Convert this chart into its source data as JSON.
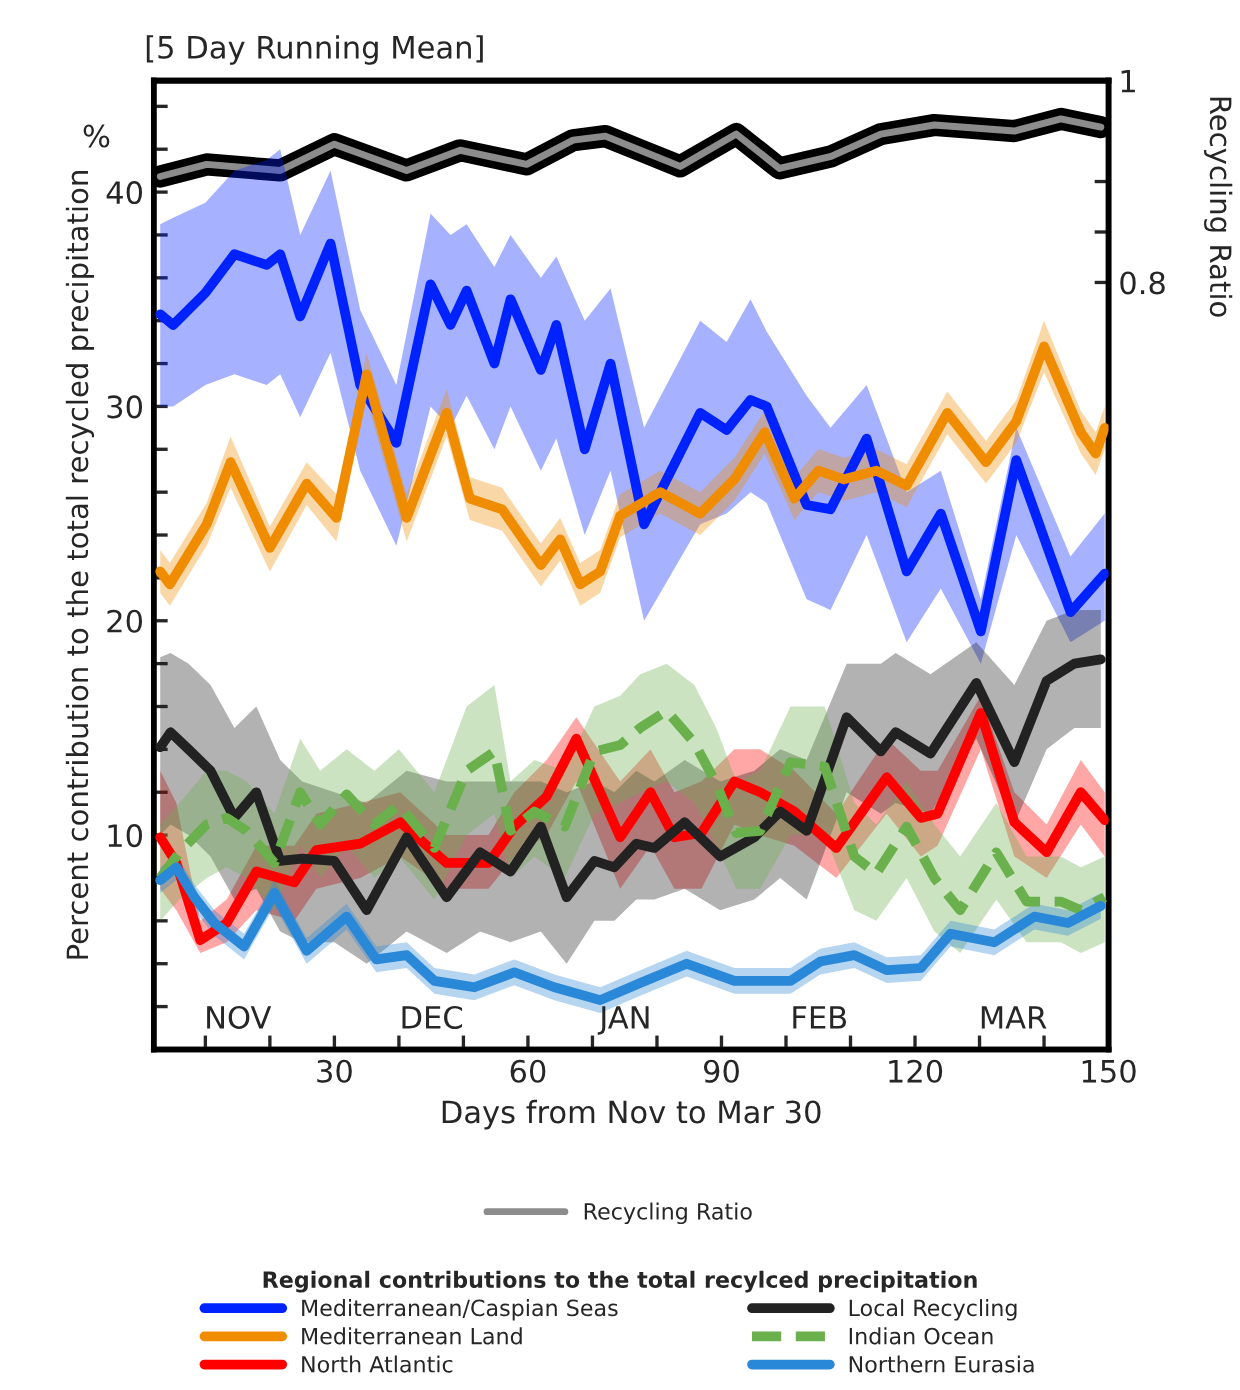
{
  "chart_data": {
    "type": "line",
    "title": "[5 Day Running Mean]",
    "xlabel": "Days from Nov to Mar 30",
    "ylabel": "Percent contribution to the total recycled precipitation",
    "y2label": "Recycling Ratio",
    "legend_title": "Regional contributions to the total recylced precipitation",
    "legend": "bottom",
    "grid": false,
    "xlim": [
      2,
      150
    ],
    "xticks": [
      {
        "value": 10,
        "label": null
      },
      {
        "value": 20,
        "label": null
      },
      30,
      {
        "value": 40,
        "label": null
      },
      {
        "value": 50,
        "label": null
      },
      60,
      {
        "value": 70,
        "label": null
      },
      {
        "value": 80,
        "label": null
      },
      90,
      {
        "value": 100,
        "label": null
      },
      {
        "value": 110,
        "label": null
      },
      120,
      {
        "value": 130,
        "label": null
      },
      {
        "value": 140,
        "label": null
      },
      150
    ],
    "ylim": [
      0,
      45.2
    ],
    "yticks": [
      {
        "value": 2,
        "label": null
      },
      {
        "value": 4,
        "label": null
      },
      {
        "value": 6,
        "label": null
      },
      {
        "value": 8,
        "label": null
      },
      10,
      {
        "value": 12,
        "label": null
      },
      {
        "value": 14,
        "label": null
      },
      {
        "value": 16,
        "label": null
      },
      {
        "value": 18,
        "label": null
      },
      20,
      {
        "value": 22,
        "label": null
      },
      {
        "value": 24,
        "label": null
      },
      {
        "value": 26,
        "label": null
      },
      {
        "value": 28,
        "label": null
      },
      30,
      {
        "value": 32,
        "label": null
      },
      {
        "value": 34,
        "label": null
      },
      {
        "value": 36,
        "label": null
      },
      {
        "value": 38,
        "label": null
      },
      40,
      {
        "value": 42,
        "label": null
      },
      {
        "value": 44,
        "label": null
      }
    ],
    "y2lim": [
      0.04,
      1
    ],
    "y2ticks": [
      0.8,
      {
        "value": 0.85,
        "label": null
      },
      {
        "value": 0.9,
        "label": null
      },
      {
        "value": 0.95,
        "label": null
      },
      1
    ],
    "annotations": [
      "%",
      "NOV",
      "DEC",
      "JAN",
      "FEB",
      "MAR"
    ],
    "series": [
      {
        "name": "Recycling Ratio",
        "axis": "y2",
        "color": "#8c8c8c",
        "x": [
          3,
          10.2,
          21.6,
          30,
          41.2,
          49.5,
          59.8,
          67,
          72,
          77.4,
          83.6,
          92.3,
          99,
          107,
          114.7,
          123,
          135.4,
          142.6,
          148.8
        ],
        "values": [
          0.905,
          0.917,
          0.911,
          0.937,
          0.911,
          0.931,
          0.917,
          0.941,
          0.945,
          0.931,
          0.915,
          0.947,
          0.913,
          0.925,
          0.947,
          0.956,
          0.95,
          0.962,
          0.954
        ]
      },
      {
        "name": "Mediterranean/Caspian Seas",
        "color": "#0022ff",
        "x": [
          3,
          5,
          10,
          14.5,
          19.5,
          21.6,
          24.7,
          29.4,
          34,
          39.6,
          44.9,
          48,
          50.5,
          54.8,
          57.3,
          62,
          64.4,
          68.8,
          72.8,
          78,
          86.7,
          90.8,
          94.5,
          97,
          103.2,
          106.9,
          112.5,
          118.7,
          124,
          130.2,
          135.7,
          144.1,
          149.4
        ],
        "values": [
          34.3,
          33.8,
          35.3,
          37.1,
          36.6,
          37.1,
          34.2,
          37.6,
          31,
          28.3,
          35.7,
          33.8,
          35.4,
          32,
          35,
          31.7,
          33.8,
          28,
          32,
          24.5,
          29.7,
          28.9,
          30.3,
          30,
          25.4,
          25.2,
          28.5,
          22.3,
          25,
          19.5,
          27.5,
          20.4,
          22.2
        ],
        "lower": [
          30,
          30,
          31,
          31.5,
          31,
          31.5,
          29.5,
          32.5,
          27,
          23.5,
          30,
          29,
          30.5,
          28,
          30,
          27,
          28.5,
          24,
          27,
          20,
          24.5,
          25,
          26,
          25.5,
          21,
          20.5,
          24,
          19,
          21.5,
          18,
          24,
          19,
          20
        ],
        "upper": [
          38.5,
          38.8,
          39.5,
          41,
          41.5,
          42,
          38,
          41,
          34.5,
          31,
          39,
          38,
          38.5,
          36.5,
          38,
          36,
          37,
          34,
          35.5,
          29,
          34,
          33,
          35,
          33.5,
          30.5,
          29,
          31,
          26,
          27,
          21,
          29,
          23,
          25
        ]
      },
      {
        "name": "Mediterranean Land",
        "color": "#f08c00",
        "x": [
          3,
          4.5,
          10.2,
          13.9,
          20,
          25.7,
          30.3,
          35,
          41.2,
          47.4,
          51,
          56,
          62,
          65,
          68.1,
          71.2,
          74.3,
          80.5,
          86.7,
          92,
          96.7,
          101.3,
          105,
          109,
          114,
          118.7,
          125,
          131,
          135.7,
          140,
          145.7,
          148,
          149.4
        ],
        "values": [
          22.3,
          21.7,
          24.5,
          27.4,
          23.4,
          26.4,
          24.8,
          31.5,
          24.8,
          29.7,
          25.7,
          25.2,
          22.6,
          23.8,
          21.7,
          22.3,
          24.9,
          26,
          25,
          26.6,
          28.8,
          25.7,
          27,
          26.6,
          27,
          26.3,
          29.7,
          27.4,
          29.3,
          32.8,
          28.8,
          27.8,
          29
        ],
        "lower": [
          21.3,
          20.7,
          23.5,
          26.2,
          22.3,
          25.4,
          23.7,
          30.3,
          23.7,
          28.6,
          24.7,
          24.2,
          21.6,
          22.8,
          20.7,
          21.3,
          23.9,
          25,
          24,
          25.6,
          27.8,
          24.7,
          26,
          25.6,
          26,
          25.3,
          28.7,
          26.4,
          28.3,
          31.6,
          27.8,
          26.8,
          28
        ],
        "upper": [
          23.3,
          22.7,
          25.5,
          28.6,
          24.4,
          27.4,
          25.9,
          32.5,
          25.9,
          30.8,
          26.7,
          26.2,
          23.6,
          24.8,
          22.7,
          23.3,
          25.9,
          27,
          26,
          27.6,
          29.8,
          26.7,
          28,
          27.6,
          28,
          27.3,
          30.7,
          28.4,
          30.3,
          34,
          29.8,
          28.8,
          30
        ]
      },
      {
        "name": "North Atlantic",
        "color": "#ff0000",
        "x": [
          3,
          5.5,
          9.2,
          13.3,
          17.9,
          23.8,
          27.2,
          34,
          40.2,
          47.4,
          53.9,
          57.9,
          62.9,
          67.5,
          74.3,
          79,
          82.7,
          86.9,
          92,
          96,
          101.3,
          107.8,
          115.6,
          120.9,
          123.5,
          130.2,
          135.4,
          140.4,
          145.7,
          149.4
        ],
        "values": [
          9.9,
          8.7,
          5.1,
          5.9,
          8.3,
          7.8,
          9.3,
          9.6,
          10.6,
          8.7,
          8.7,
          10.4,
          11.8,
          14.5,
          9.9,
          12,
          9.9,
          10.1,
          12.5,
          12,
          11.1,
          9.4,
          12.7,
          10.8,
          11,
          15.7,
          10.6,
          9.2,
          12,
          10.7
        ],
        "lower": [
          7.5,
          6.5,
          4.5,
          5,
          6.5,
          6,
          7.5,
          8,
          9,
          7.5,
          7.5,
          9,
          10,
          12.5,
          7.5,
          9.5,
          7.5,
          7.5,
          10.5,
          10,
          9.5,
          8,
          11,
          9,
          9.5,
          14,
          9,
          8,
          10.5,
          9
        ],
        "upper": [
          13,
          11.5,
          6,
          7,
          9.5,
          9.5,
          11,
          11.5,
          12,
          10,
          10,
          12,
          13.5,
          15.5,
          12.5,
          14,
          12,
          12.5,
          14,
          14,
          13,
          11,
          14.5,
          13,
          13,
          16.5,
          12,
          10.5,
          13.5,
          12
        ]
      },
      {
        "name": "Local Recycling",
        "color": "#222222",
        "x": [
          3,
          4.6,
          7.4,
          10.8,
          14.5,
          17.9,
          21.6,
          25,
          30,
          35,
          41.2,
          47.4,
          52.6,
          57.3,
          62,
          66,
          70.3,
          73.4,
          76.8,
          79.6,
          84.3,
          89.8,
          95.1,
          99.1,
          103.2,
          109.4,
          114.7,
          117,
          122.4,
          129.5,
          135.4,
          140.4,
          144.7,
          148.8
        ],
        "values": [
          14.1,
          14.8,
          14,
          13,
          10.8,
          12,
          8.8,
          8.9,
          8.8,
          6.5,
          9.9,
          7.1,
          9.2,
          8.3,
          10.4,
          7.1,
          8.8,
          8.5,
          9.6,
          9.4,
          10.6,
          9,
          9.9,
          11.1,
          10.2,
          15.5,
          13.9,
          14.8,
          13.8,
          17.1,
          13.4,
          17.2,
          18,
          18.2
        ],
        "lower": [
          10,
          10.5,
          10,
          9,
          7,
          7.5,
          5.5,
          5,
          5,
          4,
          5.5,
          4.5,
          5.5,
          5,
          5.5,
          4,
          6,
          6,
          7,
          7,
          7.5,
          6.5,
          7,
          8,
          7,
          12,
          11,
          11.5,
          11,
          14.5,
          10.5,
          14,
          15,
          15
        ],
        "upper": [
          18.3,
          18.5,
          18,
          17,
          15,
          16,
          13.5,
          12.5,
          12,
          11.5,
          13,
          12.5,
          12.5,
          12.5,
          12.5,
          12,
          12.5,
          12,
          13,
          12.5,
          13.5,
          12.5,
          13,
          14,
          13.5,
          18,
          18,
          18.5,
          17.5,
          19,
          17,
          20,
          20.5,
          20.5
        ]
      },
      {
        "name": "Indian Ocean",
        "color": "#6ab04c",
        "line_style": "dashed",
        "x": [
          3,
          6,
          10.2,
          13.3,
          16.4,
          20.7,
          24.7,
          27.8,
          31.9,
          36.2,
          40,
          45.5,
          50.5,
          54.8,
          57.3,
          61,
          65.7,
          70.3,
          74.3,
          77.4,
          81.5,
          85.8,
          89.2,
          92.3,
          96,
          100.7,
          106,
          110.6,
          114,
          118.7,
          123,
          127,
          132.6,
          137.3,
          142.6,
          145.7,
          149.4
        ],
        "values": [
          8,
          9.2,
          10.5,
          10.8,
          10.2,
          8.7,
          12,
          10.5,
          11.9,
          10.5,
          11.4,
          9.4,
          13,
          13.9,
          10.2,
          11.1,
          10.4,
          13.9,
          14.2,
          15,
          15.8,
          14.3,
          12.4,
          10.1,
          10.2,
          13.4,
          13.2,
          9,
          8.2,
          10.4,
          8,
          6.5,
          9.2,
          6.9,
          6.9,
          6.5,
          7.1
        ],
        "lower": [
          6,
          7,
          8,
          8.5,
          8,
          6.5,
          9.5,
          8,
          9.5,
          8,
          9,
          7,
          10,
          11,
          8,
          9,
          8,
          11,
          11.5,
          12,
          12.5,
          11.5,
          9.5,
          7.5,
          7.5,
          10,
          10,
          6.5,
          6,
          8,
          5.5,
          4.5,
          7,
          5,
          5,
          4.5,
          5
        ],
        "upper": [
          10.5,
          11.5,
          13,
          13,
          12.5,
          11,
          14.5,
          13,
          14,
          13,
          14,
          12,
          16,
          17,
          12.5,
          13.5,
          13,
          16,
          16.5,
          17.5,
          18,
          17,
          15,
          12.5,
          13,
          16,
          16,
          11.5,
          10.5,
          12.5,
          10.5,
          9,
          11.5,
          9,
          9,
          8.5,
          9
        ]
      },
      {
        "name": "Northern Eurasia",
        "color": "#2a88d8",
        "x": [
          3,
          5.5,
          8.3,
          11.4,
          16,
          20.7,
          25.7,
          31.9,
          36.5,
          41.2,
          45.5,
          51.7,
          57.9,
          64.1,
          71.2,
          77.4,
          84.6,
          92,
          100.7,
          105.3,
          110.6,
          115.6,
          120.9,
          125.5,
          132.3,
          138.5,
          143.7,
          148.8
        ],
        "values": [
          7.9,
          8.5,
          7.1,
          5.9,
          4.8,
          7.3,
          4.6,
          6.2,
          4.2,
          4.4,
          3.2,
          2.9,
          3.6,
          2.9,
          2.3,
          3.1,
          4,
          3.2,
          3.2,
          4.1,
          4.4,
          3.7,
          3.8,
          5.4,
          5,
          6.2,
          5.9,
          6.7
        ],
        "lower": [
          7.3,
          7.9,
          6.5,
          5.3,
          4.2,
          6.7,
          4,
          5.6,
          3.6,
          3.8,
          2.6,
          2.3,
          3,
          2.3,
          1.7,
          2.5,
          3.4,
          2.6,
          2.6,
          3.5,
          3.8,
          3.1,
          3.2,
          4.8,
          4.4,
          5.6,
          5.3,
          6.1
        ],
        "upper": [
          8.5,
          9.1,
          7.7,
          6.5,
          5.4,
          7.9,
          5.2,
          6.8,
          4.8,
          5,
          3.8,
          3.5,
          4.2,
          3.5,
          2.9,
          3.7,
          4.6,
          3.8,
          3.8,
          4.7,
          5,
          4.3,
          4.4,
          6,
          5.6,
          6.8,
          6.5,
          7.3
        ]
      }
    ]
  }
}
